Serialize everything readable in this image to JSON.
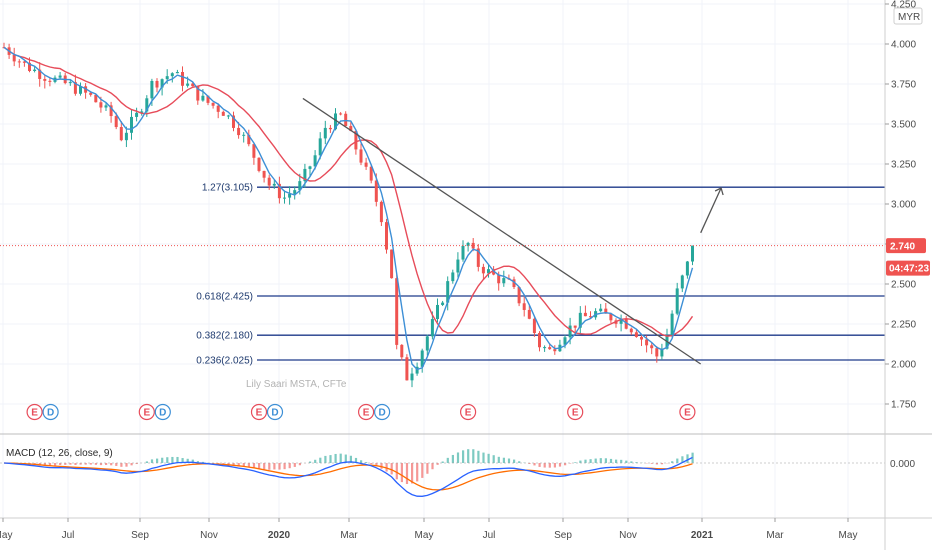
{
  "currency": "MYR",
  "watermark": "Lily Saari  MSTA, CFTe",
  "macd_label": "MACD (12, 26, close, 9)",
  "macd_zero_label": "0.000",
  "current_price_label": "2.740",
  "countdown_label": "04:47:23",
  "colors": {
    "up": "#26a69a",
    "down": "#ef5350",
    "ma_fast": "#3d8fd6",
    "ma_slow": "#e74c5a",
    "fib_line": "#1e3a8a",
    "trendline": "#555555",
    "current_badge": "#ef5350",
    "countdown_badge": "#ef5350",
    "macd_line": "#2962ff",
    "signal_line": "#ff6d00"
  },
  "chart_data": {
    "type": "candlestick",
    "y_axis": {
      "ylim": [
        1.6,
        4.25
      ],
      "ticks": [
        "4.250",
        "4.000",
        "3.750",
        "3.500",
        "3.250",
        "3.000",
        "2.750",
        "2.500",
        "2.250",
        "2.000",
        "1.750"
      ]
    },
    "x_axis": {
      "ticks": [
        "May",
        "Jul",
        "Sep",
        "Nov",
        "2020",
        "Mar",
        "May",
        "Jul",
        "Sep",
        "Nov",
        "2021",
        "Mar",
        "May"
      ],
      "bold": [
        "2020",
        "2021"
      ]
    },
    "price_path": [
      [
        0,
        3.98
      ],
      [
        4,
        3.87
      ],
      [
        8,
        3.8
      ],
      [
        13,
        3.74
      ],
      [
        17,
        3.67
      ],
      [
        21,
        3.55
      ],
      [
        23,
        3.42
      ],
      [
        26,
        3.55
      ],
      [
        29,
        3.75
      ],
      [
        33,
        3.82
      ],
      [
        36,
        3.74
      ],
      [
        39,
        3.65
      ],
      [
        43,
        3.58
      ],
      [
        46,
        3.47
      ],
      [
        49,
        3.3
      ],
      [
        52,
        3.12
      ],
      [
        55,
        3.04
      ],
      [
        58,
        3.12
      ],
      [
        61,
        3.3
      ],
      [
        63,
        3.48
      ],
      [
        66,
        3.55
      ],
      [
        68,
        3.42
      ],
      [
        70,
        3.28
      ],
      [
        72,
        3.12
      ],
      [
        74,
        2.92
      ],
      [
        76,
        2.55
      ],
      [
        77,
        2.1
      ],
      [
        79,
        1.92
      ],
      [
        81,
        2.02
      ],
      [
        84,
        2.25
      ],
      [
        87,
        2.5
      ],
      [
        89,
        2.68
      ],
      [
        91,
        2.75
      ],
      [
        93,
        2.62
      ],
      [
        96,
        2.55
      ],
      [
        99,
        2.5
      ],
      [
        102,
        2.35
      ],
      [
        105,
        2.12
      ],
      [
        107,
        2.08
      ],
      [
        110,
        2.2
      ],
      [
        113,
        2.28
      ],
      [
        116,
        2.32
      ],
      [
        118,
        2.3
      ],
      [
        121,
        2.28
      ],
      [
        124,
        2.2
      ],
      [
        126,
        2.12
      ],
      [
        128,
        2.05
      ],
      [
        130,
        2.18
      ],
      [
        132,
        2.45
      ],
      [
        134,
        2.62
      ],
      [
        135,
        2.74
      ]
    ],
    "fib_levels": [
      {
        "label": "1.27(3.105)",
        "value": 3.105
      },
      {
        "label": "0.618(2.425)",
        "value": 2.425
      },
      {
        "label": "0.382(2.180)",
        "value": 2.18
      },
      {
        "label": "0.236(2.025)",
        "value": 2.025
      }
    ],
    "trendline": {
      "from": [
        59,
        3.66
      ],
      "to": [
        137,
        2.0
      ]
    },
    "projection_arrow": {
      "from": [
        137,
        2.82
      ],
      "to": [
        141,
        3.1
      ]
    },
    "current_price": 2.74,
    "events": [
      {
        "labels": [
          "E",
          "D"
        ],
        "index": 6
      },
      {
        "labels": [
          "E",
          "D"
        ],
        "index": 28
      },
      {
        "labels": [
          "E",
          "D"
        ],
        "index": 50
      },
      {
        "labels": [
          "E",
          "D"
        ],
        "index": 71
      },
      {
        "labels": [
          "E"
        ],
        "index": 91
      },
      {
        "labels": [
          "E"
        ],
        "index": 112
      },
      {
        "labels": [
          "E"
        ],
        "index": 134
      }
    ],
    "macd_zero": 0.0
  }
}
